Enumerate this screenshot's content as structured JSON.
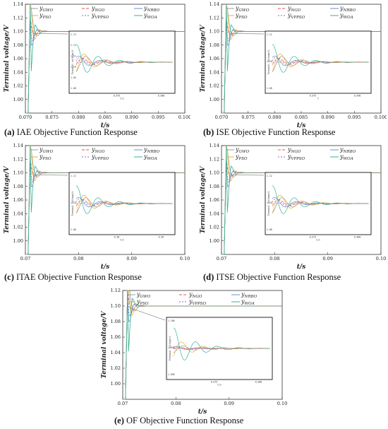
{
  "chart_data": [
    {
      "panel": "a",
      "type": "line",
      "caption_letter": "(a)",
      "caption_text": "IAE Objective Function Response",
      "xlabel": "t/s",
      "ylabel": "Terminal voltage/V",
      "xlim": [
        0.07,
        0.1
      ],
      "ylim": [
        0.98,
        1.14
      ],
      "xticks": [
        "0.070",
        "0.075",
        "0.080",
        "0.085",
        "0.090",
        "0.095",
        "0.100"
      ],
      "yticks": [
        "1.00",
        "1.02",
        "1.04",
        "1.06",
        "1.08",
        "1.10",
        "1.12",
        "1.14"
      ],
      "inset": {
        "ylabel": "Terminal voltage/V",
        "xlabel": "t/s",
        "xticks": [
          "0.075",
          "0.080"
        ],
        "yticks": [
          "1.13",
          "1.12",
          "1.11",
          "1.10",
          "1.09",
          "1.08"
        ]
      },
      "series_names": [
        "y_GWO",
        "y_NGO",
        "y_NRBO",
        "y_PSO",
        "y_VPPSO",
        "y_WOA"
      ],
      "steady": 1.1
    },
    {
      "panel": "b",
      "type": "line",
      "caption_letter": "(b)",
      "caption_text": "ISE Objective Function Response",
      "xlabel": "t/s",
      "ylabel": "Terminal voltage/V",
      "xlim": [
        0.07,
        0.1
      ],
      "ylim": [
        0.98,
        1.14
      ],
      "xticks": [
        "0.070",
        "0.075",
        "0.080",
        "0.085",
        "0.090",
        "0.095",
        "0.100"
      ],
      "yticks": [
        "1.00",
        "1.02",
        "1.04",
        "1.06",
        "1.08",
        "1.10",
        "1.12",
        "1.14"
      ],
      "inset": {
        "ylabel": "Terminal voltage/V",
        "xlabel": "t",
        "xticks": [
          "0.075",
          "0.090"
        ],
        "yticks": [
          "1.12",
          "1.10",
          "1.08"
        ]
      },
      "series_names": [
        "y_GWO",
        "y_NGO",
        "y_NRBO",
        "y_PSO",
        "y_VPPSO",
        "y_WOA"
      ],
      "steady": 1.1
    },
    {
      "panel": "c",
      "type": "line",
      "caption_letter": "(c)",
      "caption_text": "ITAE Objective Function Response",
      "xlabel": "t/s",
      "ylabel": "Terminal voltage/V",
      "xlim": [
        0.07,
        0.1
      ],
      "ylim": [
        0.98,
        1.14
      ],
      "xticks": [
        "0.07",
        "0.08",
        "0.09",
        "0.10"
      ],
      "yticks": [
        "1.00",
        "1.02",
        "1.04",
        "1.06",
        "1.08",
        "1.10",
        "1.12",
        "1.14"
      ],
      "inset": {
        "ylabel": "Terminal voltage/V",
        "xlabel": "t/s",
        "xticks": [
          "0.08",
          "0.09"
        ],
        "yticks": [
          "1.12",
          "1.10",
          "1.08"
        ]
      },
      "series_names": [
        "y_GWO",
        "y_NGO",
        "y_NRBO",
        "y_PSO",
        "y_VPPSO",
        "y_WOA"
      ],
      "steady": 1.1
    },
    {
      "panel": "d",
      "type": "line",
      "caption_letter": "(d)",
      "caption_text": "ITSE Objective Function Response",
      "xlabel": "t/s",
      "ylabel": "Terminal voltage/V",
      "xlim": [
        0.07,
        0.1
      ],
      "ylim": [
        0.98,
        1.14
      ],
      "xticks": [
        "0.07",
        "0.08",
        "0.09",
        "0.10"
      ],
      "yticks": [
        "1.00",
        "1.02",
        "1.04",
        "1.06",
        "1.08",
        "1.10",
        "1.12",
        "1.14"
      ],
      "inset": {
        "ylabel": "Terminal voltage/V",
        "xlabel": "t/s",
        "xticks": [
          "0.075",
          "0.080"
        ],
        "yticks": [
          "1.12",
          "1.10",
          "1.08"
        ]
      },
      "series_names": [
        "y_GWO",
        "y_NGO",
        "y_NRBO",
        "y_PSO",
        "y_VPPSO",
        "y_WOA"
      ],
      "steady": 1.1
    },
    {
      "panel": "e",
      "type": "line",
      "caption_letter": "(e)",
      "caption_text": "OF Objective Function Response",
      "xlabel": "t/s",
      "ylabel": "Terminal voltage/V",
      "xlim": [
        0.07,
        0.1
      ],
      "ylim": [
        0.98,
        1.12
      ],
      "xticks": [
        "0.07",
        "0.08",
        "0.09",
        "0.10"
      ],
      "yticks": [
        "1.00",
        "1.02",
        "1.04",
        "1.06",
        "1.08",
        "1.10",
        "1.12"
      ],
      "inset": {
        "ylabel": "Terminal voltage/V",
        "xlabel": "t/s",
        "xticks": [
          "0.075",
          "0.080"
        ],
        "yticks": [
          "1.100",
          "1.098",
          "1.096"
        ]
      },
      "series_names": [
        "y_GWO",
        "y_NGO",
        "y_NRBO",
        "y_PSO",
        "y_VPPSO",
        "y_WOA"
      ],
      "steady": 1.1
    }
  ],
  "legend": [
    {
      "base": "y",
      "sub": "GWO",
      "color": "#9e9e9e",
      "dash": ""
    },
    {
      "base": "y",
      "sub": "NGO",
      "color": "#e8534a",
      "dash": "4,2"
    },
    {
      "base": "y",
      "sub": "NRBO",
      "color": "#6b8fd6",
      "dash": ""
    },
    {
      "base": "y",
      "sub": "PSO",
      "color": "#e8b13a",
      "dash": ""
    },
    {
      "base": "y",
      "sub": "VPPSO",
      "color": "#7e6fc9",
      "dash": "2,2"
    },
    {
      "base": "y",
      "sub": "WOA",
      "color": "#38b28f",
      "dash": ""
    }
  ],
  "dashed_legend_b": {
    "base": "y",
    "sub": "NGO",
    "color": "#3a4fb8"
  }
}
